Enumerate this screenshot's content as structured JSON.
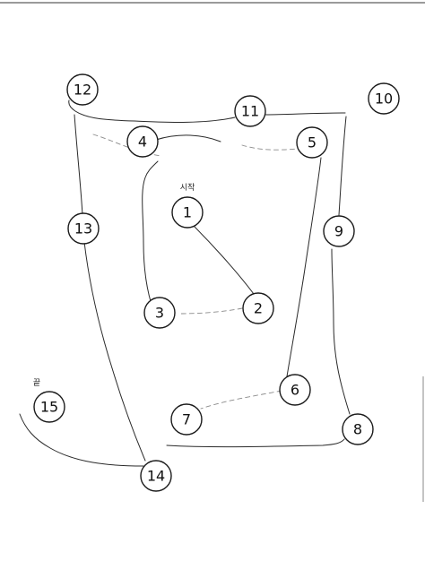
{
  "worksheet": {
    "start_label": "시작",
    "end_label": "끝",
    "points": [
      {
        "label": "1"
      },
      {
        "label": "2"
      },
      {
        "label": "3"
      },
      {
        "label": "4"
      },
      {
        "label": "5"
      },
      {
        "label": "6"
      },
      {
        "label": "7"
      },
      {
        "label": "8"
      },
      {
        "label": "9"
      },
      {
        "label": "10"
      },
      {
        "label": "11"
      },
      {
        "label": "12"
      },
      {
        "label": "13"
      },
      {
        "label": "14"
      },
      {
        "label": "15"
      }
    ]
  }
}
